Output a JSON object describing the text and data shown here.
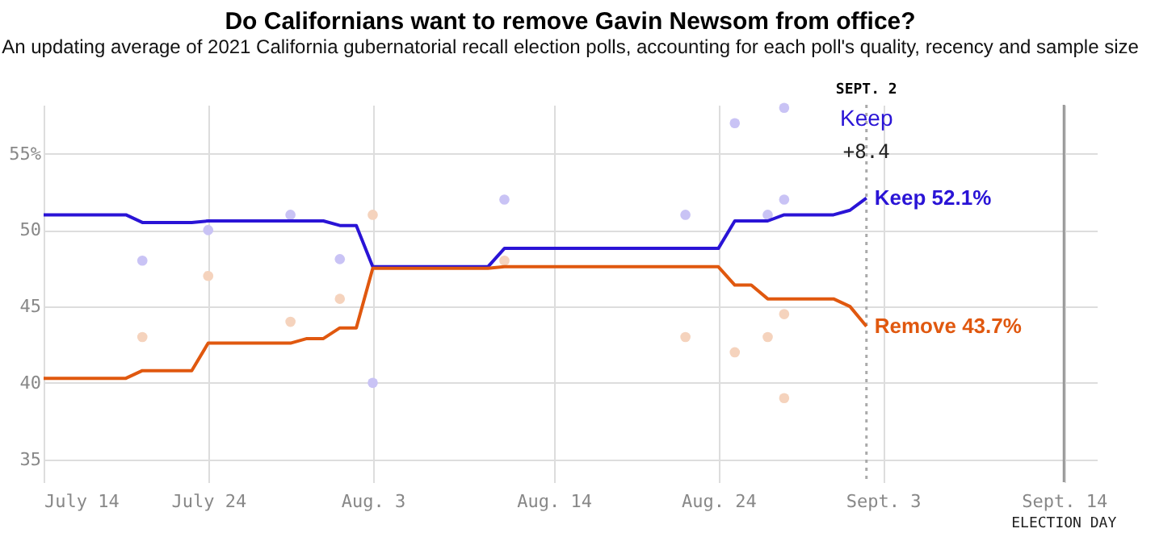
{
  "chart_data": {
    "type": "line",
    "title": "Do Californians want to remove Gavin Newsom from office?",
    "subtitle": "An updating average of 2021 California gubernatorial recall election polls, accounting for each poll's quality, recency and sample size",
    "series": [
      {
        "name": "Keep",
        "color": "#2a14d6",
        "x": [
          "2021-07-14",
          "2021-07-19",
          "2021-07-20",
          "2021-07-23",
          "2021-07-24",
          "2021-07-31",
          "2021-08-01",
          "2021-08-02",
          "2021-08-03",
          "2021-08-10",
          "2021-08-11",
          "2021-08-24",
          "2021-08-25",
          "2021-08-27",
          "2021-08-28",
          "2021-08-31",
          "2021-09-01",
          "2021-09-02"
        ],
        "values": [
          51.0,
          51.0,
          50.5,
          50.5,
          50.6,
          50.6,
          50.3,
          50.3,
          47.6,
          47.6,
          48.8,
          48.8,
          50.6,
          50.6,
          51.0,
          51.0,
          51.3,
          52.1
        ],
        "value_labels": [
          null,
          null,
          null,
          null,
          null,
          null,
          null,
          null,
          null,
          null,
          null,
          null,
          null,
          null,
          null,
          null,
          null,
          "52.1%"
        ]
      },
      {
        "name": "Remove",
        "color": "#e0580f",
        "x": [
          "2021-07-14",
          "2021-07-19",
          "2021-07-20",
          "2021-07-23",
          "2021-07-24",
          "2021-07-29",
          "2021-07-30",
          "2021-07-31",
          "2021-08-01",
          "2021-08-02",
          "2021-08-03",
          "2021-08-10",
          "2021-08-11",
          "2021-08-24",
          "2021-08-25",
          "2021-08-26",
          "2021-08-27",
          "2021-08-31",
          "2021-09-01",
          "2021-09-02"
        ],
        "values": [
          40.3,
          40.3,
          40.8,
          40.8,
          42.6,
          42.6,
          42.9,
          42.9,
          43.6,
          43.6,
          47.5,
          47.5,
          47.6,
          47.6,
          46.4,
          46.4,
          45.5,
          45.5,
          45.0,
          43.7
        ],
        "value_labels": [
          null,
          null,
          null,
          null,
          null,
          null,
          null,
          null,
          null,
          null,
          null,
          null,
          null,
          null,
          null,
          null,
          null,
          null,
          null,
          "43.7%"
        ]
      },
      {
        "type": "scatter",
        "marker": "circle",
        "color": "#c9c3f5",
        "x": [
          "2021-07-20",
          "2021-07-24",
          "2021-07-29",
          "2021-08-01",
          "2021-08-03",
          "2021-08-11",
          "2021-08-22",
          "2021-08-25",
          "2021-08-27",
          "2021-08-28",
          "2021-08-28"
        ],
        "values": [
          48.0,
          50.0,
          51.0,
          48.1,
          40.0,
          52.0,
          51.0,
          57.0,
          51.0,
          58.0,
          52.0
        ]
      },
      {
        "type": "scatter",
        "marker": "circle",
        "color": "#f5d3bd",
        "x": [
          "2021-07-20",
          "2021-07-24",
          "2021-07-29",
          "2021-08-01",
          "2021-08-03",
          "2021-08-11",
          "2021-08-22",
          "2021-08-25",
          "2021-08-27",
          "2021-08-28",
          "2021-08-28"
        ],
        "values": [
          43.0,
          47.0,
          44.0,
          45.5,
          51.0,
          48.0,
          43.0,
          42.0,
          43.0,
          44.5,
          39.0
        ]
      }
    ],
    "xlim": [
      "2021-07-14",
      "2021-09-16"
    ],
    "xticks": [
      {
        "value": "2021-07-14",
        "label": "July 14"
      },
      {
        "value": "2021-07-24",
        "label": "July 24"
      },
      {
        "value": "2021-08-03",
        "label": "Aug. 3"
      },
      {
        "value": "2021-08-14",
        "label": "Aug. 14"
      },
      {
        "value": "2021-08-24",
        "label": "Aug. 24"
      },
      {
        "value": "2021-09-03",
        "label": "Sept. 3"
      },
      {
        "value": "2021-09-14",
        "label": "Sept. 14"
      }
    ],
    "ylim": [
      33.5,
      58.2
    ],
    "yticks": [
      35,
      40,
      45,
      50,
      {
        "value": 55,
        "label": "55%"
      }
    ],
    "grid": true,
    "marker": "none",
    "line_style": "solid",
    "ref_lines": [
      {
        "axis": "x",
        "value": "2021-09-02",
        "label": "SEPT. 2",
        "color": "#aaaaaa",
        "line_style": "dotted"
      },
      {
        "axis": "x",
        "value": "2021-09-14",
        "label": "ELECTION DAY",
        "color": "#999999",
        "line_style": "solid"
      }
    ],
    "annotations": [
      "Keep",
      "+8.4"
    ]
  }
}
